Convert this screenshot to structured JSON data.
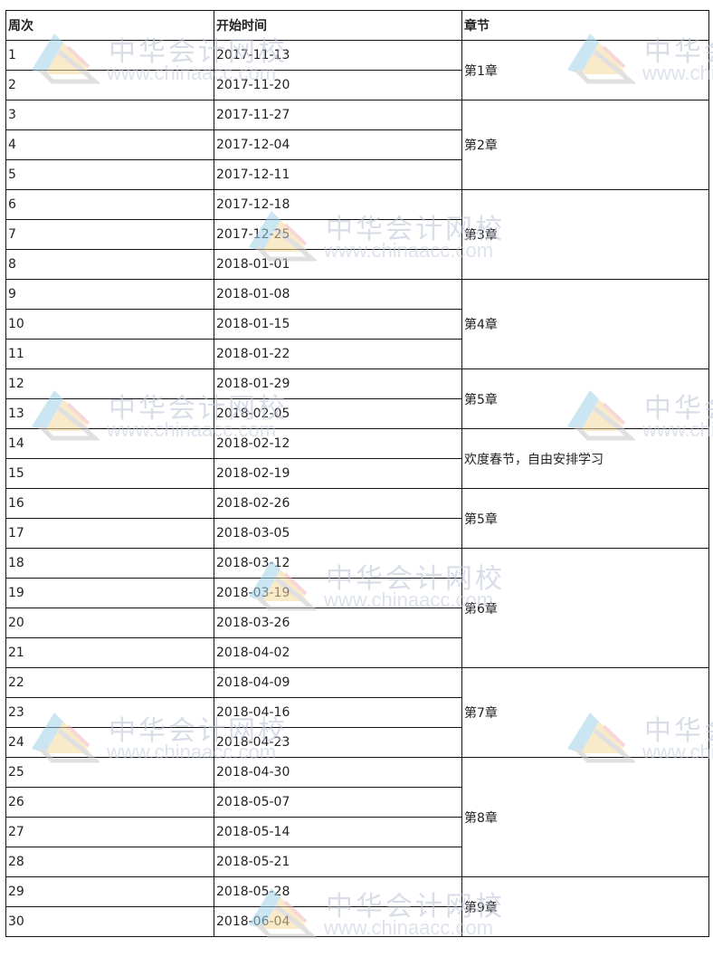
{
  "headers": [
    "周次",
    "开始时间",
    "章节"
  ],
  "rows": [
    {
      "week": "1",
      "date": "2017-11-13"
    },
    {
      "week": "2",
      "date": "2017-11-20"
    },
    {
      "week": "3",
      "date": "2017-11-27"
    },
    {
      "week": "4",
      "date": "2017-12-04"
    },
    {
      "week": "5",
      "date": "2017-12-11"
    },
    {
      "week": "6",
      "date": "2017-12-18"
    },
    {
      "week": "7",
      "date": "2017-12-25"
    },
    {
      "week": "8",
      "date": "2018-01-01"
    },
    {
      "week": "9",
      "date": "2018-01-08"
    },
    {
      "week": "10",
      "date": "2018-01-15"
    },
    {
      "week": "11",
      "date": "2018-01-22"
    },
    {
      "week": "12",
      "date": "2018-01-29"
    },
    {
      "week": "13",
      "date": "2018-02-05"
    },
    {
      "week": "14",
      "date": "2018-02-12"
    },
    {
      "week": "15",
      "date": "2018-02-19"
    },
    {
      "week": "16",
      "date": "2018-02-26"
    },
    {
      "week": "17",
      "date": "2018-03-05"
    },
    {
      "week": "18",
      "date": "2018-03-12"
    },
    {
      "week": "19",
      "date": "2018-03-19"
    },
    {
      "week": "20",
      "date": "2018-03-26"
    },
    {
      "week": "21",
      "date": "2018-04-02"
    },
    {
      "week": "22",
      "date": "2018-04-09"
    },
    {
      "week": "23",
      "date": "2018-04-16"
    },
    {
      "week": "24",
      "date": "2018-04-23"
    },
    {
      "week": "25",
      "date": "2018-04-30"
    },
    {
      "week": "26",
      "date": "2018-05-07"
    },
    {
      "week": "27",
      "date": "2018-05-14"
    },
    {
      "week": "28",
      "date": "2018-05-21"
    },
    {
      "week": "29",
      "date": "2018-05-28"
    },
    {
      "week": "30",
      "date": "2018-06-04"
    }
  ],
  "chapters": [
    {
      "label": "第1章",
      "span": 2
    },
    {
      "label": "第2章",
      "span": 3
    },
    {
      "label": "第3章",
      "span": 3
    },
    {
      "label": "第4章",
      "span": 3
    },
    {
      "label": "第5章",
      "span": 2
    },
    {
      "label": "欢度春节，自由安排学习",
      "span": 2
    },
    {
      "label": "第5章",
      "span": 2
    },
    {
      "label": "第6章",
      "span": 4
    },
    {
      "label": "第7章",
      "span": 3
    },
    {
      "label": "第8章",
      "span": 4
    },
    {
      "label": "第9章",
      "span": 2
    }
  ],
  "watermark": {
    "cn": "中华会计网校",
    "en": "www.chinaacc.com"
  }
}
